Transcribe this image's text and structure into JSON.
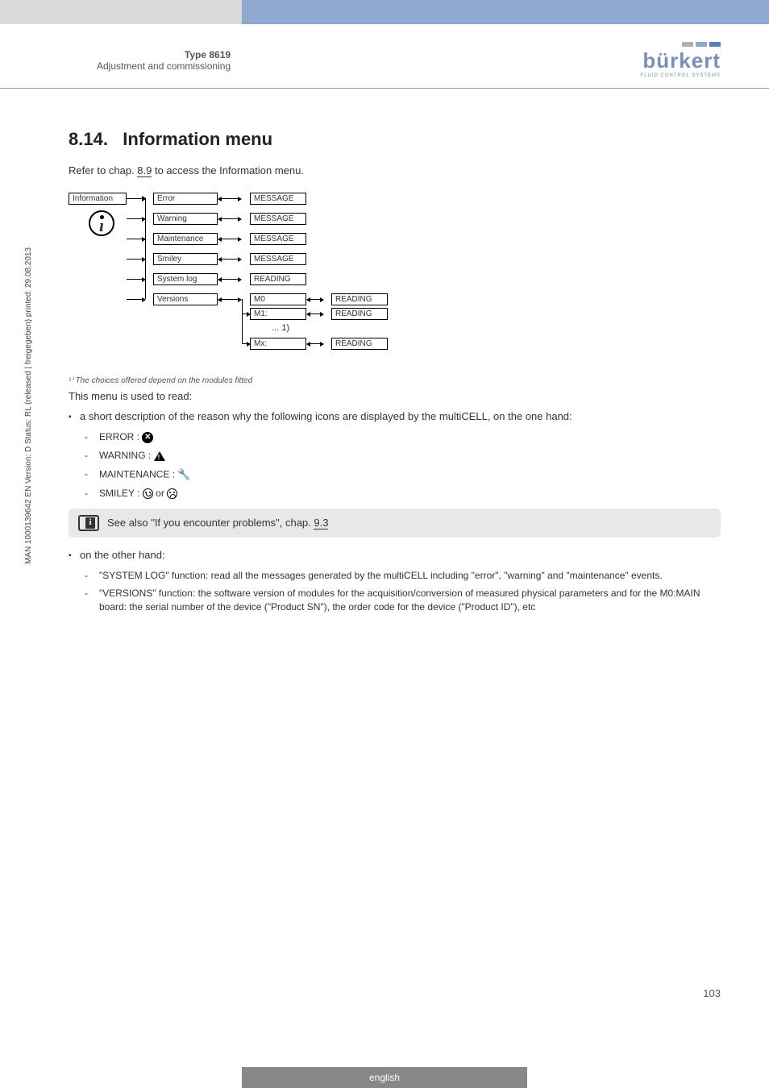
{
  "header": {
    "type": "Type 8619",
    "subtitle": "Adjustment and commissioning",
    "brand": "bürkert",
    "brand_sub": "FLUID CONTROL SYSTEMS",
    "bar_colors": [
      "#b0b0b0",
      "#8ea8d0",
      "#5a7fb5"
    ]
  },
  "section": {
    "number": "8.14.",
    "title": "Information menu",
    "intro_pre": "Refer to chap. ",
    "intro_link": "8.9",
    "intro_post": " to access the Information menu."
  },
  "diagram": {
    "root": "Information",
    "rows": [
      {
        "l1": "Error",
        "l2": "MESSAGE"
      },
      {
        "l1": "Warning",
        "l2": "MESSAGE"
      },
      {
        "l1": "Maintenance",
        "l2": "MESSAGE"
      },
      {
        "l1": "Smiley",
        "l2": "MESSAGE"
      },
      {
        "l1": "System log",
        "l2": "READING"
      },
      {
        "l1": "Versions",
        "l2": "M0",
        "l3": "READING"
      }
    ],
    "sub": [
      {
        "l2": "M1:",
        "l3": "READING"
      },
      {
        "l2": "Mx:",
        "l3": "READING"
      }
    ],
    "dots": "...  1)"
  },
  "footnote": "¹⁾ The choices offered depend on the modules fitted",
  "menu_intro": "This menu is used to read:",
  "bullet1": "a short description of the reason why the following icons are displayed by the multiCELL, on the one hand:",
  "icons": {
    "error": "ERROR : ",
    "warning": "WARNING : ",
    "maintenance": "MAINTENANCE : ",
    "smiley_pre": "SMILEY : ",
    "smiley_or": " or "
  },
  "note": {
    "text_pre": "See also \"If you encounter problems\", chap. ",
    "link": "9.3"
  },
  "bullet2": "on the other hand:",
  "sublist": [
    "\"SYSTEM LOG\" function: read all the messages generated by the multiCELL including \"error\", \"warning\" and \"maintenance\" events.",
    "\"VERSIONS\" function: the software version of modules for the acquisition/conversion of measured physical parameters and for the M0:MAIN board: the serial number of the device (\"Product SN\"), the order code for the device (\"Product ID\"), etc"
  ],
  "sidebar": "MAN 1000139642 EN Version: D Status: RL (released | freigegeben) printed: 29.08.2013",
  "page_num": "103",
  "footer": "english"
}
